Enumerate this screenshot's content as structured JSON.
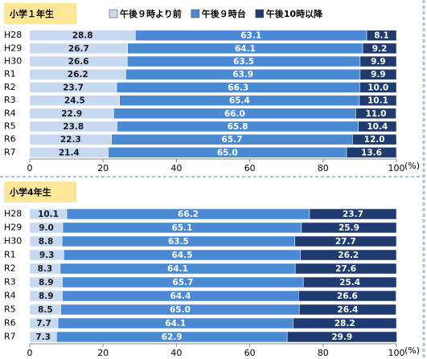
{
  "chart_data": [
    {
      "type": "bar",
      "orientation": "horizontal",
      "stacked": true,
      "title": "小学１年生",
      "categories": [
        "H28",
        "H29",
        "H30",
        "R1",
        "R2",
        "R3",
        "R4",
        "R5",
        "R6",
        "R7"
      ],
      "series": [
        {
          "name": "午後９時より前",
          "color": "#c6d9f1",
          "label_color": "#1a1a1a",
          "values": [
            28.8,
            26.7,
            26.6,
            26.2,
            23.7,
            24.5,
            22.9,
            23.8,
            22.3,
            21.4
          ]
        },
        {
          "name": "午後９時台",
          "color": "#4a8ad4",
          "label_color": "#ffffff",
          "values": [
            63.1,
            64.1,
            63.5,
            63.9,
            66.3,
            65.4,
            66.0,
            65.8,
            65.7,
            65.0
          ],
          "value_labels": [
            "63.1",
            "64.1",
            "63.5",
            "63.9",
            "66.3",
            "65.4",
            "66.0",
            "65.8",
            "65.7",
            "65.0"
          ]
        },
        {
          "name": "午後10時以降",
          "color": "#1f3b70",
          "label_color": "#ffffff",
          "values": [
            8.1,
            9.2,
            9.9,
            9.9,
            10.0,
            10.1,
            11.0,
            10.4,
            12.0,
            13.6
          ],
          "value_labels": [
            "8.1",
            "9.2",
            "9.9",
            "9.9",
            "10.0",
            "10.1",
            "11.0",
            "10.4",
            "12.0",
            "13.6"
          ]
        }
      ],
      "xlim": [
        0,
        100
      ],
      "xticks": [
        0,
        20,
        40,
        60,
        80,
        100
      ],
      "x_unit": "(%)"
    },
    {
      "type": "bar",
      "orientation": "horizontal",
      "stacked": true,
      "title": "小学4年生",
      "categories": [
        "H28",
        "H29",
        "H30",
        "R1",
        "R2",
        "R3",
        "R4",
        "R5",
        "R6",
        "R7"
      ],
      "series": [
        {
          "color": "#c6d9f1",
          "label_color": "#1a1a1a",
          "values": [
            10.1,
            9.0,
            8.8,
            9.3,
            8.3,
            8.9,
            8.9,
            8.5,
            7.7,
            7.3
          ],
          "value_labels": [
            "10.1",
            "9.0",
            "8.8",
            "9.3",
            "8.3",
            "8.9",
            "8.9",
            "8.5",
            "7.7",
            "7.3"
          ]
        },
        {
          "color": "#4a8ad4",
          "label_color": "#ffffff",
          "values": [
            66.2,
            65.1,
            63.5,
            64.5,
            64.1,
            65.7,
            64.4,
            65.0,
            64.1,
            62.9
          ],
          "value_labels": [
            "66.2",
            "65.1",
            "63.5",
            "64.5",
            "64.1",
            "65.7",
            "64.4",
            "65.0",
            "64.1",
            "62.9"
          ]
        },
        {
          "color": "#1f3b70",
          "label_color": "#ffffff",
          "values": [
            23.7,
            25.9,
            27.7,
            26.2,
            27.6,
            25.4,
            26.6,
            26.4,
            28.2,
            29.9
          ]
        }
      ],
      "xlim": [
        0,
        100
      ],
      "xticks": [
        0,
        20,
        40,
        60,
        80,
        100
      ],
      "x_unit": "(%)"
    }
  ]
}
